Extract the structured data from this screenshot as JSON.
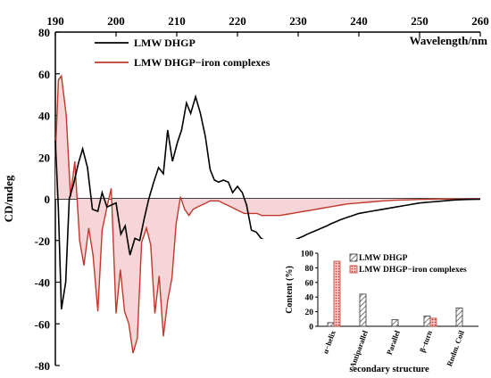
{
  "chart_data": [
    {
      "type": "line",
      "xlabel": "Wavelength/nm",
      "ylabel": "CD/mdeg",
      "xlim": [
        190,
        260
      ],
      "ylim": [
        -80,
        80
      ],
      "xticks": [
        190,
        200,
        210,
        220,
        230,
        240,
        250,
        260
      ],
      "yticks": [
        80,
        60,
        40,
        20,
        0,
        -20,
        -40,
        -60,
        -80
      ],
      "xtick_labels": [
        "190",
        "200",
        "210",
        "220",
        "230",
        "240",
        "250",
        "260"
      ],
      "ytick_labels": [
        "80",
        "60",
        "40",
        "20",
        "0",
        "-20",
        "-40",
        "-60",
        "-80"
      ],
      "legend_position": "top-left",
      "series": [
        {
          "name": "LMW DHGP",
          "color": "#000000",
          "x": [
            190,
            190.5,
            191,
            191.7,
            192.3,
            193,
            193.8,
            194.5,
            195.3,
            196.1,
            197,
            197.7,
            198.5,
            199.2,
            200,
            200.8,
            201.5,
            202.3,
            203.1,
            203.9,
            204.6,
            205.4,
            206.2,
            207,
            207.8,
            208.5,
            209.3,
            210.1,
            210.8,
            211.6,
            212.3,
            213.1,
            213.9,
            214.7,
            215.5,
            216.2,
            216.9,
            217.7,
            218.5,
            219.2,
            220,
            220.8,
            221.5,
            222.3,
            223.1,
            223.9,
            224.6,
            225.4,
            226.2,
            227,
            227.7,
            228.5,
            229.2,
            230,
            230.8,
            231.5,
            232.3,
            233.1,
            233.9,
            234.7,
            235.4,
            236.2,
            237,
            238,
            239,
            240,
            242,
            244,
            246,
            248,
            250,
            252,
            254,
            256,
            258,
            260
          ],
          "y": [
            28,
            -5,
            -53,
            -40,
            0,
            7,
            17,
            24,
            15,
            -5,
            -6,
            3,
            -4,
            -3,
            -2,
            -17,
            -13,
            -27,
            -19,
            -20,
            -10,
            0,
            8,
            15,
            12,
            33,
            18,
            27,
            33,
            46,
            41,
            49,
            41,
            30,
            14,
            9,
            8,
            9,
            8,
            3,
            6,
            3,
            -3,
            -15,
            -16,
            -19,
            -20,
            -22,
            -22,
            -22,
            -21,
            -21,
            -20,
            -19,
            -18,
            -17,
            -16,
            -15,
            -14,
            -13,
            -12,
            -11,
            -10,
            -9,
            -8,
            -7,
            -6,
            -5,
            -4,
            -3,
            -2,
            -1.5,
            -1,
            -0.5,
            -0.3,
            -0.2
          ]
        },
        {
          "name": "LMW DHGP−iron complexes",
          "color": "#c0392b",
          "fill": "#f6d5d8",
          "x": [
            190,
            190.5,
            191,
            191.8,
            192.5,
            193.2,
            194,
            194.7,
            195.5,
            196.2,
            197,
            197.7,
            198.5,
            199.2,
            200,
            200.7,
            201.4,
            202.1,
            202.8,
            203.5,
            204.2,
            205,
            205.7,
            206.4,
            207.1,
            207.8,
            208.5,
            209.2,
            209.9,
            210.6,
            211.3,
            212,
            212.7,
            213.4,
            214.1,
            214.8,
            215.5,
            216.2,
            216.9,
            217.6,
            218.3,
            219,
            219.7,
            220.4,
            221.1,
            221.8,
            222.5,
            223.2,
            224,
            225,
            226,
            227,
            228,
            229,
            230,
            231,
            232,
            233,
            234,
            235,
            236,
            237,
            238,
            240,
            242,
            244,
            246,
            248,
            250,
            252,
            254,
            256,
            258,
            260
          ],
          "y": [
            20,
            57,
            59,
            40,
            1,
            18,
            -20,
            -32,
            -14,
            -27,
            -54,
            -15,
            -4,
            5,
            -55,
            -34,
            -54,
            -60,
            -74,
            -67,
            -21,
            -14,
            -22,
            -55,
            -37,
            -66,
            -49,
            -38,
            -12,
            1,
            -5,
            -8,
            -5,
            -4,
            -3,
            -2,
            -1,
            -1,
            -1,
            -2,
            -3,
            -4,
            -5,
            -6,
            -7,
            -7,
            -7,
            -7,
            -8,
            -8,
            -8,
            -8,
            -7.5,
            -7,
            -6.5,
            -6,
            -5.5,
            -5,
            -4.5,
            -4,
            -3.5,
            -3,
            -2.5,
            -2,
            -1.5,
            -1,
            -0.7,
            -0.5,
            -0.3,
            -0.2,
            -0.1,
            -0.1,
            -0.05,
            0
          ]
        }
      ]
    },
    {
      "type": "bar",
      "xlabel": "secondary structure",
      "ylabel": "Content (%)",
      "ylim": [
        0,
        100
      ],
      "yticks": [
        0,
        20,
        40,
        60,
        80,
        100
      ],
      "ytick_labels": [
        "0",
        "20",
        "40",
        "60",
        "80",
        "100"
      ],
      "categories": [
        "α−helix",
        "Antiparallel",
        "Parallel",
        "β−turn",
        "Rndm. Coil"
      ],
      "legend_position": "top-right",
      "series": [
        {
          "name": "LMW DHGP",
          "color": "#555555",
          "values": [
            5,
            44,
            9,
            14,
            25
          ]
        },
        {
          "name": "LMW DHGP−iron complexes",
          "color": "#c0392b",
          "values": [
            89,
            0,
            0,
            11,
            0
          ]
        }
      ]
    }
  ]
}
